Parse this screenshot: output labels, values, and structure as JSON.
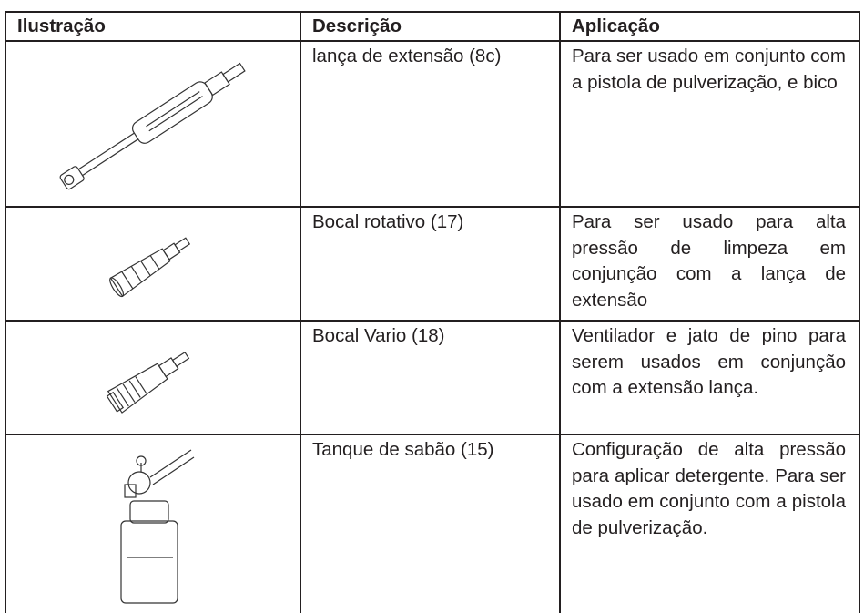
{
  "table": {
    "header": [
      "Ilustração",
      "Descrição",
      "Aplicação"
    ],
    "rows": [
      [
        "lança de extensão (8c)",
        "Para ser usado em conjunto com a pistola de pulverização, e bico"
      ],
      [
        "Bocal rotativo (17)",
        "Para ser usado para alta pressão de limpeza em conjunção com a lança de extensão"
      ],
      [
        "Bocal Vario (18)",
        "Ventilador e jato de pino para serem usados em conjunção com a extensão lança."
      ],
      [
        "Tanque de sabão (15)",
        "Configuração de alta pressão para aplicar detergente. Para ser usado em conjunto com a pistola de pulverização."
      ]
    ]
  }
}
